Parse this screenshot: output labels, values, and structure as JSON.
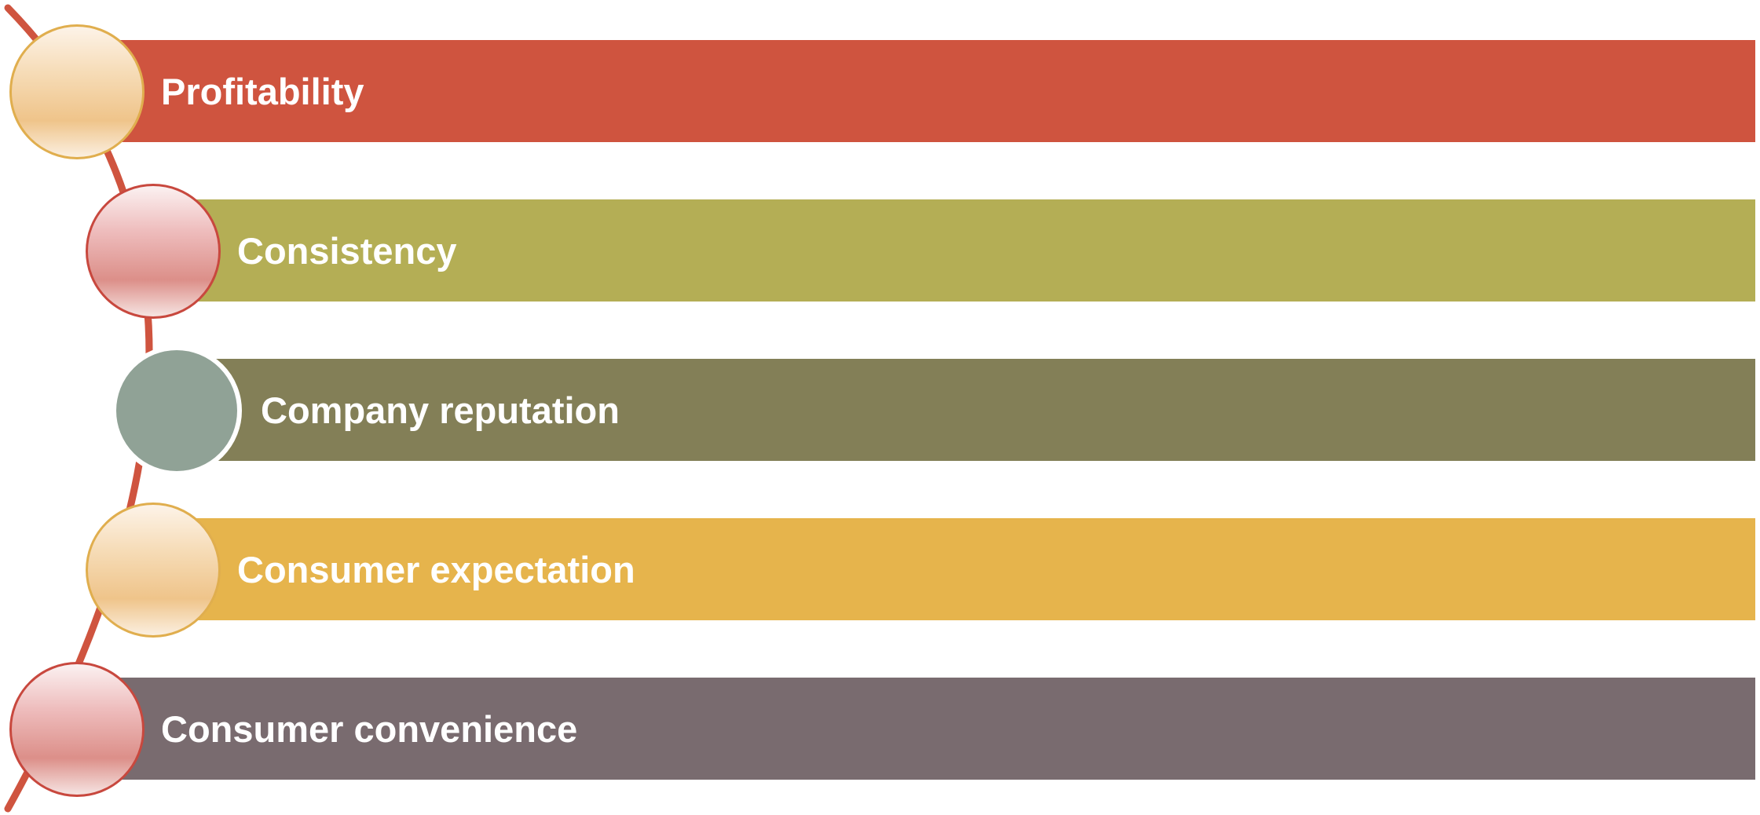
{
  "items": [
    {
      "label": "Profitability",
      "bar_color": "#cf543f",
      "node_style": "gold"
    },
    {
      "label": "Consistency",
      "bar_color": "#b4ae55",
      "node_style": "rose"
    },
    {
      "label": "Company reputation",
      "bar_color": "#837f57",
      "node_style": "sage"
    },
    {
      "label": "Consumer expectation",
      "bar_color": "#e6b44c",
      "node_style": "gold"
    },
    {
      "label": "Consumer convenience",
      "bar_color": "#796b6f",
      "node_style": "rose"
    }
  ],
  "colors": {
    "arc": "#cf543f",
    "node_gold_border": "#e0ae4e",
    "node_rose_border": "#c8483e",
    "node_sage": "#90a296"
  }
}
